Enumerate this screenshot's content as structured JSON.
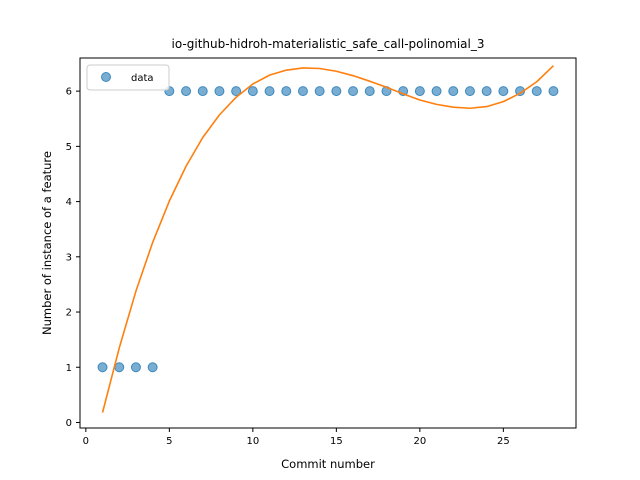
{
  "chart_data": {
    "type": "scatter",
    "title": "io-github-hidroh-materialistic_safe_call-polinomial_3",
    "xlabel": "Commit number",
    "ylabel": "Number of instance of a feature",
    "xlim": [
      -0.35,
      29.35
    ],
    "ylim": [
      -0.1,
      6.6
    ],
    "xticks": [
      0,
      5,
      10,
      15,
      20,
      25
    ],
    "yticks": [
      0,
      1,
      2,
      3,
      4,
      5,
      6
    ],
    "grid": false,
    "legend": {
      "placement": "top-left",
      "entries": [
        "data"
      ]
    },
    "series": [
      {
        "name": "data",
        "kind": "scatter",
        "color": "#1f77b4",
        "x": [
          1,
          2,
          3,
          4,
          5,
          6,
          7,
          8,
          9,
          10,
          11,
          12,
          13,
          14,
          15,
          16,
          17,
          18,
          19,
          20,
          21,
          22,
          23,
          24,
          25,
          26,
          27,
          28
        ],
        "y": [
          1,
          1,
          1,
          1,
          6,
          6,
          6,
          6,
          6,
          6,
          6,
          6,
          6,
          6,
          6,
          6,
          6,
          6,
          6,
          6,
          6,
          6,
          6,
          6,
          6,
          6,
          6,
          6
        ]
      },
      {
        "kind": "line",
        "color": "#ff7f0e",
        "x": [
          1,
          2,
          3,
          4,
          5,
          6,
          7,
          8,
          9,
          10,
          11,
          12,
          13,
          14,
          15,
          16,
          17,
          18,
          19,
          20,
          21,
          22,
          23,
          24,
          25,
          26,
          27,
          28
        ],
        "y": [
          0.18,
          1.35,
          2.38,
          3.26,
          4.01,
          4.64,
          5.16,
          5.57,
          5.89,
          6.13,
          6.29,
          6.38,
          6.42,
          6.41,
          6.36,
          6.28,
          6.18,
          6.07,
          5.95,
          5.84,
          5.76,
          5.71,
          5.69,
          5.72,
          5.81,
          5.96,
          6.17,
          6.46
        ]
      }
    ]
  }
}
